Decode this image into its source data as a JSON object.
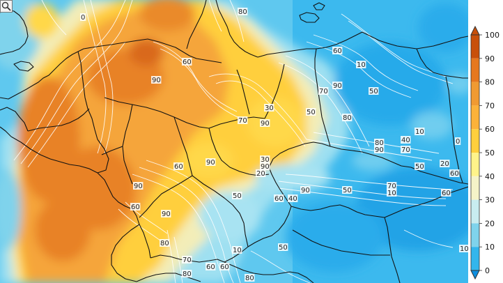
{
  "colorbar": {
    "labels": [
      "100",
      "90",
      "80",
      "70",
      "60",
      "50",
      "40",
      "30",
      "20",
      "10",
      "0"
    ],
    "colors": [
      "#c8500a",
      "#e6781e",
      "#f09a32",
      "#fbb23a",
      "#ffcf3d",
      "#fff38a",
      "#f5f3c8",
      "#c8ecf0",
      "#7fd3ec",
      "#33b6ec",
      "#0e8fe0"
    ],
    "top_color": "#c8500a",
    "bottom_color": "#0e8fe0"
  },
  "map": {
    "background": "#5fc8ef",
    "contour_color": "#ffffff",
    "border_color": "#111111",
    "contour_labels": [
      {
        "text": "0"
      },
      {
        "text": "80"
      },
      {
        "text": "60"
      },
      {
        "text": "10"
      },
      {
        "text": "90"
      },
      {
        "text": "60"
      },
      {
        "text": "70"
      },
      {
        "text": "90"
      },
      {
        "text": "50"
      },
      {
        "text": "30"
      },
      {
        "text": "50"
      },
      {
        "text": "70"
      },
      {
        "text": "90"
      },
      {
        "text": "80"
      },
      {
        "text": "80"
      },
      {
        "text": "90"
      },
      {
        "text": "10"
      },
      {
        "text": "40"
      },
      {
        "text": "70"
      },
      {
        "text": "0"
      },
      {
        "text": "90"
      },
      {
        "text": "60"
      },
      {
        "text": "90"
      },
      {
        "text": "30"
      },
      {
        "text": "20"
      },
      {
        "text": "50"
      },
      {
        "text": "20"
      },
      {
        "text": "60"
      },
      {
        "text": "90"
      },
      {
        "text": "60"
      },
      {
        "text": "50"
      },
      {
        "text": "90"
      },
      {
        "text": "50"
      },
      {
        "text": "60"
      },
      {
        "text": "40"
      },
      {
        "text": "70"
      },
      {
        "text": "10"
      },
      {
        "text": "60"
      },
      {
        "text": "90"
      },
      {
        "text": "80"
      },
      {
        "text": "10"
      },
      {
        "text": "50"
      },
      {
        "text": "10"
      },
      {
        "text": "70"
      },
      {
        "text": "60"
      },
      {
        "text": "60"
      },
      {
        "text": "80"
      },
      {
        "text": "80"
      }
    ]
  },
  "controls": {
    "zoom_icon": "magnifier-icon"
  }
}
